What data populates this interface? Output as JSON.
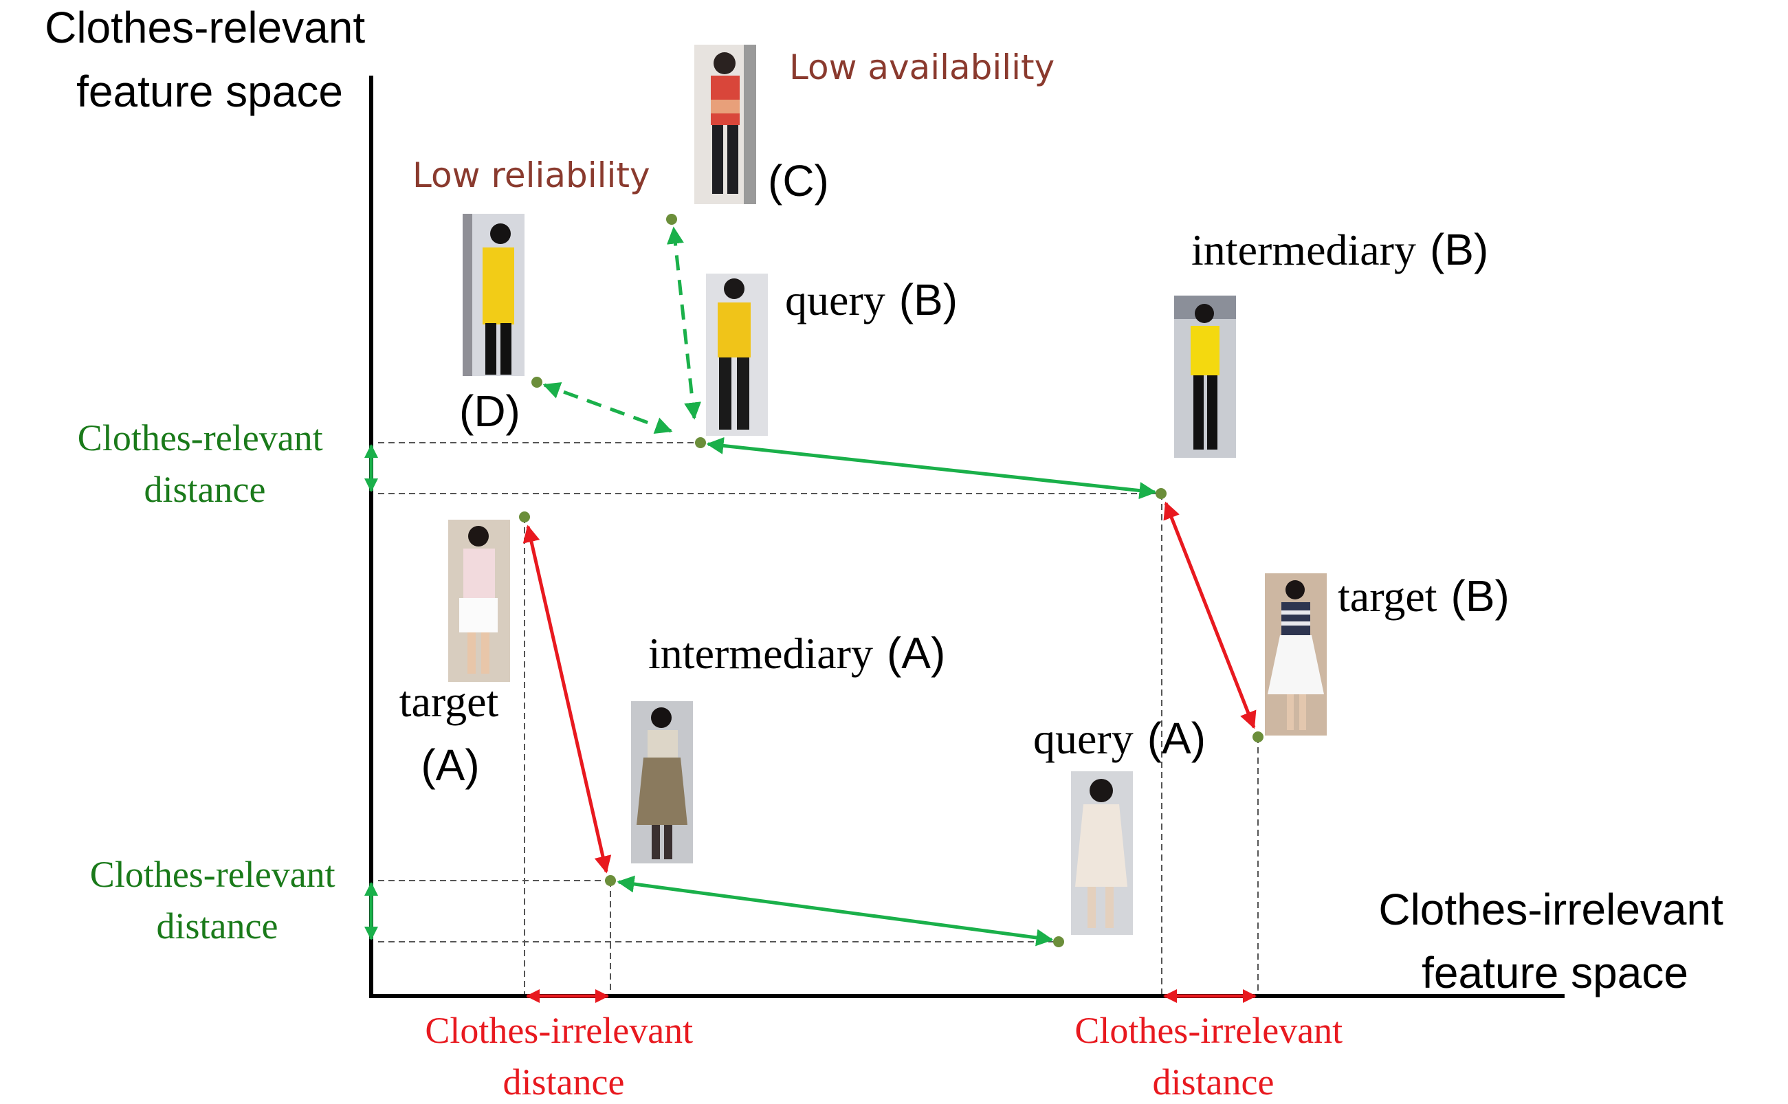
{
  "axes": {
    "y_label_line1": "Clothes-relevant",
    "y_label_line2": "feature space",
    "x_label_line1": "Clothes-irrelevant",
    "x_label_line2": "feature space"
  },
  "nodes": {
    "query_a": {
      "word": "query",
      "tag": "(A)"
    },
    "query_b": {
      "word": "query",
      "tag": "(B)"
    },
    "intermediary_a": {
      "word": "intermediary",
      "tag": "(A)"
    },
    "intermediary_b": {
      "word": "intermediary",
      "tag": "(B)"
    },
    "target_a": {
      "word": "target",
      "tag": "(A)"
    },
    "target_b": {
      "word": "target",
      "tag": "(B)"
    },
    "candidate_c": {
      "tag": "(C)"
    },
    "candidate_d": {
      "tag": "(D)"
    }
  },
  "annotations": {
    "low_availability": "Low availability",
    "low_reliability": "Low reliability"
  },
  "distances": {
    "relevant_line1": "Clothes-relevant",
    "relevant_line2": "distance",
    "irrelevant_line1": "Clothes-irrelevant",
    "irrelevant_line2": "distance"
  },
  "colors": {
    "relevant_arrow": "#1ab04a",
    "irrelevant_arrow": "#e8191f",
    "relevant_text": "#1a7a1a",
    "irrelevant_text": "#e8191f",
    "warning_text": "#8a3a2e",
    "point": "#6b8e3a"
  }
}
